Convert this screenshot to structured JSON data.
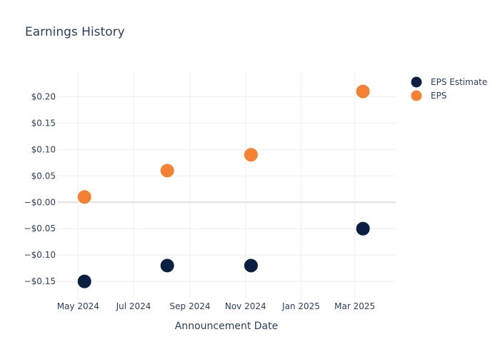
{
  "chart_data": {
    "type": "scatter",
    "title": "Earnings History",
    "xlabel": "Announcement Date",
    "ylabel": "",
    "x_ticks": [
      {
        "date": "2024-05-01",
        "label": "May 2024"
      },
      {
        "date": "2024-07-01",
        "label": "Jul 2024"
      },
      {
        "date": "2024-09-01",
        "label": "Sep 2024"
      },
      {
        "date": "2024-11-01",
        "label": "Nov 2024"
      },
      {
        "date": "2025-01-01",
        "label": "Jan 2025"
      },
      {
        "date": "2025-03-01",
        "label": "Mar 2025"
      }
    ],
    "y_ticks": [
      {
        "value": 0.2,
        "label": "$0.20"
      },
      {
        "value": 0.15,
        "label": "$0.15"
      },
      {
        "value": 0.1,
        "label": "$0.10"
      },
      {
        "value": 0.05,
        "label": "$0.05"
      },
      {
        "value": 0.0,
        "label": "−$0.00"
      },
      {
        "value": -0.05,
        "label": "−$0.05"
      },
      {
        "value": -0.1,
        "label": "−$0.10"
      },
      {
        "value": -0.15,
        "label": "−$0.15"
      }
    ],
    "xlim": [
      "2024-04-08",
      "2025-04-15"
    ],
    "ylim": [
      -0.185,
      0.248
    ],
    "grid": true,
    "legend_position": "top-right",
    "series": [
      {
        "name": "EPS Estimate",
        "color": "#0b1f40",
        "points": [
          {
            "x": "2024-05-08",
            "y": -0.15
          },
          {
            "x": "2024-08-07",
            "y": -0.12
          },
          {
            "x": "2024-11-07",
            "y": -0.12
          },
          {
            "x": "2025-03-10",
            "y": -0.05
          }
        ]
      },
      {
        "name": "EPS",
        "color": "#f58233",
        "points": [
          {
            "x": "2024-05-08",
            "y": 0.01
          },
          {
            "x": "2024-08-07",
            "y": 0.06
          },
          {
            "x": "2024-11-07",
            "y": 0.09
          },
          {
            "x": "2025-03-10",
            "y": 0.21
          }
        ]
      }
    ]
  }
}
